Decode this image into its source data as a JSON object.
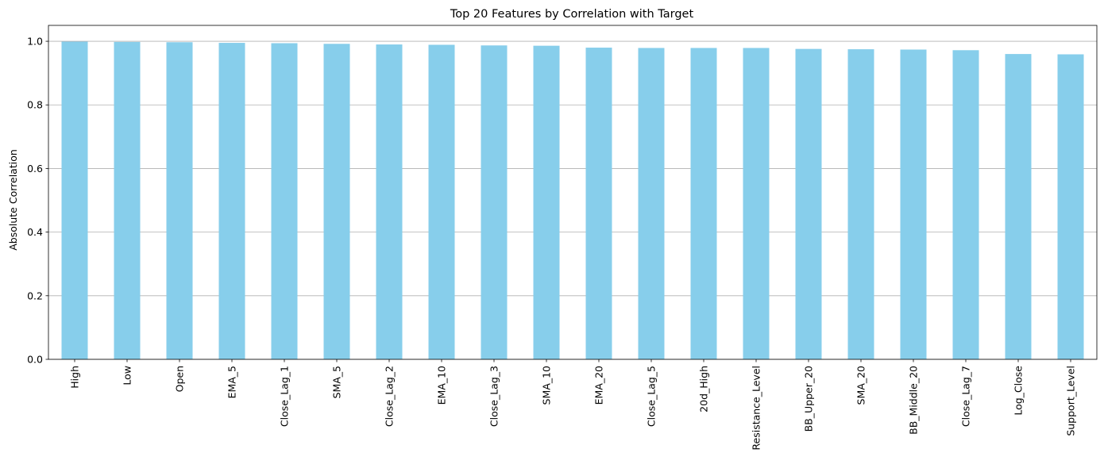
{
  "chart_data": {
    "type": "bar",
    "title": "Top 20 Features by Correlation with Target",
    "xlabel": "",
    "ylabel": "Absolute Correlation",
    "ylim": [
      0,
      1.05
    ],
    "yticks": [
      0.0,
      0.2,
      0.4,
      0.6,
      0.8,
      1.0
    ],
    "ytick_labels": [
      "0.0",
      "0.2",
      "0.4",
      "0.6",
      "0.8",
      "1.0"
    ],
    "grid": "y-axis horizontal lines",
    "bar_color": "#87ceeb",
    "grid_color": "#b0b0b0",
    "categories": [
      "High",
      "Low",
      "Open",
      "EMA_5",
      "Close_Lag_1",
      "SMA_5",
      "Close_Lag_2",
      "EMA_10",
      "Close_Lag_3",
      "SMA_10",
      "EMA_20",
      "Close_Lag_5",
      "20d_High",
      "Resistance_Level",
      "BB_Upper_20",
      "SMA_20",
      "BB_Middle_20",
      "Close_Lag_7",
      "Log_Close",
      "Support_Level"
    ],
    "values": [
      0.999,
      0.998,
      0.997,
      0.995,
      0.994,
      0.992,
      0.99,
      0.989,
      0.987,
      0.986,
      0.98,
      0.979,
      0.979,
      0.979,
      0.976,
      0.975,
      0.974,
      0.972,
      0.96,
      0.959
    ]
  }
}
